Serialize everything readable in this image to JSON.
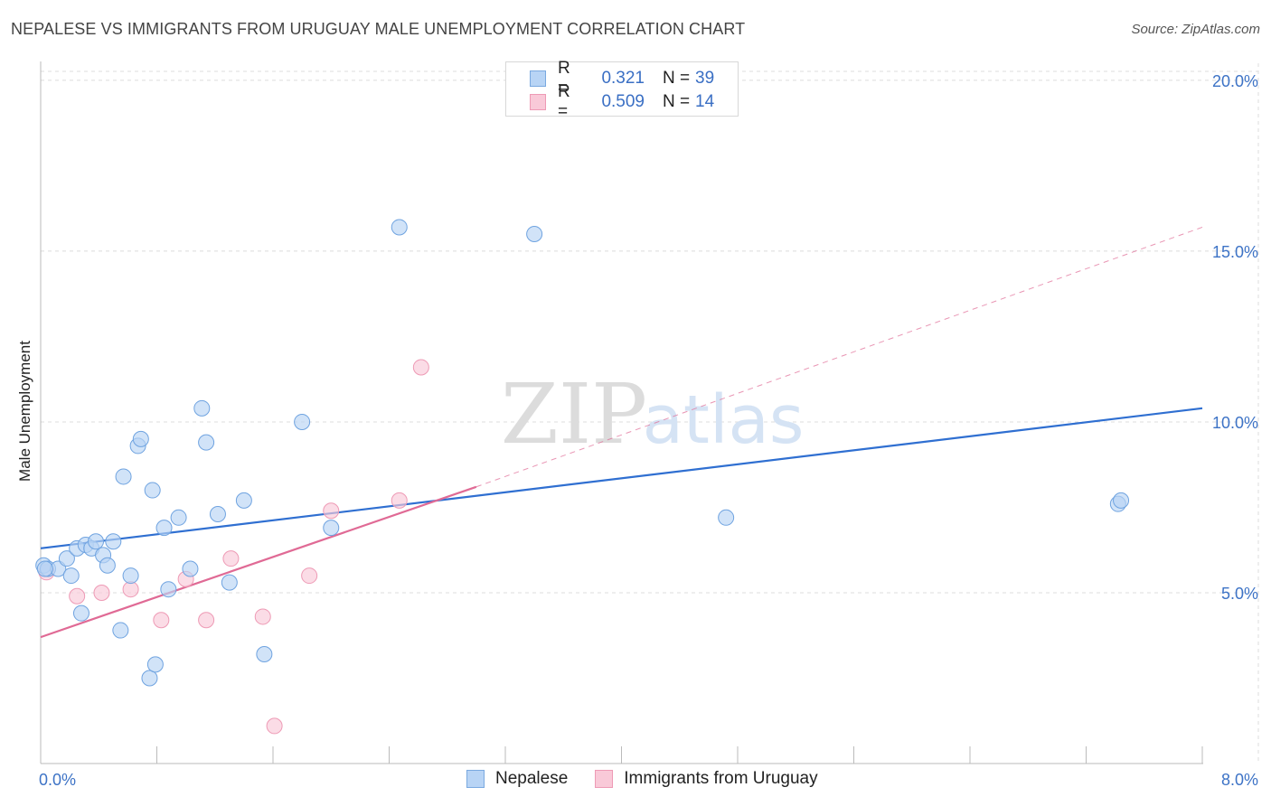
{
  "title": "NEPALESE VS IMMIGRANTS FROM URUGUAY MALE UNEMPLOYMENT CORRELATION CHART",
  "source": "Source: ZipAtlas.com",
  "watermark": {
    "zip": "ZIP",
    "atlas": "atlas"
  },
  "legend": {
    "r_label": "R =",
    "n_label": "N =",
    "rows": [
      {
        "series": "Nepalese",
        "r": "0.321",
        "n": "39",
        "fill": "#b8d4f5",
        "stroke": "#7aa9e0"
      },
      {
        "series": "Immigrants from Uruguay",
        "r": "0.509",
        "n": "14",
        "fill": "#f9c9d8",
        "stroke": "#ee9ab5"
      }
    ]
  },
  "chart_data": {
    "type": "scatter",
    "title": "NEPALESE VS IMMIGRANTS FROM URUGUAY MALE UNEMPLOYMENT CORRELATION CHART",
    "xlabel": "",
    "ylabel": "Male Unemployment",
    "xlim": [
      0,
      8
    ],
    "ylim": [
      0,
      20.5
    ],
    "x_tick_labels": [
      "0.0%",
      "8.0%"
    ],
    "y_ticks": [
      5,
      10,
      15,
      20
    ],
    "y_tick_labels": [
      "5.0%",
      "10.0%",
      "15.0%",
      "20.0%"
    ],
    "grid": true,
    "series": [
      {
        "name": "Nepalese",
        "color": "#6fa3e0",
        "fill": "#b8d4f5",
        "trend_color": "#2f6fd1",
        "trend": {
          "x0": 0,
          "y0": 6.3,
          "x1": 8,
          "y1": 10.4
        },
        "points": [
          [
            0.02,
            5.8
          ],
          [
            0.05,
            5.7
          ],
          [
            0.12,
            5.7
          ],
          [
            0.18,
            6.0
          ],
          [
            0.21,
            5.5
          ],
          [
            0.25,
            6.3
          ],
          [
            0.28,
            4.4
          ],
          [
            0.31,
            6.4
          ],
          [
            0.35,
            6.3
          ],
          [
            0.38,
            6.5
          ],
          [
            0.43,
            6.1
          ],
          [
            0.46,
            5.8
          ],
          [
            0.5,
            6.5
          ],
          [
            0.55,
            3.9
          ],
          [
            0.57,
            8.4
          ],
          [
            0.62,
            5.5
          ],
          [
            0.67,
            9.3
          ],
          [
            0.69,
            9.5
          ],
          [
            0.75,
            2.5
          ],
          [
            0.77,
            8.0
          ],
          [
            0.79,
            2.9
          ],
          [
            0.85,
            6.9
          ],
          [
            0.88,
            5.1
          ],
          [
            0.95,
            7.2
          ],
          [
            1.03,
            5.7
          ],
          [
            1.11,
            10.4
          ],
          [
            1.14,
            9.4
          ],
          [
            1.22,
            7.3
          ],
          [
            1.3,
            5.3
          ],
          [
            1.4,
            7.7
          ],
          [
            1.54,
            3.2
          ],
          [
            1.8,
            10.0
          ],
          [
            2.0,
            6.9
          ],
          [
            2.47,
            15.7
          ],
          [
            3.4,
            15.5
          ],
          [
            4.72,
            7.2
          ],
          [
            7.42,
            7.6
          ],
          [
            7.44,
            7.7
          ],
          [
            0.03,
            5.7
          ]
        ]
      },
      {
        "name": "Immigrants from Uruguay",
        "color": "#ee9ab5",
        "fill": "#f9c9d8",
        "trend_color": "#e06a95",
        "trend": {
          "x0": 0,
          "y0": 3.7,
          "x1": 3.0,
          "y1": 8.1
        },
        "trend_ext": {
          "x0": 3.0,
          "y0": 8.1,
          "x1": 8,
          "y1": 15.7
        },
        "points": [
          [
            0.04,
            5.6
          ],
          [
            0.25,
            4.9
          ],
          [
            0.42,
            5.0
          ],
          [
            0.62,
            5.1
          ],
          [
            0.83,
            4.2
          ],
          [
            1.0,
            5.4
          ],
          [
            1.14,
            4.2
          ],
          [
            1.31,
            6.0
          ],
          [
            1.53,
            4.3
          ],
          [
            1.61,
            1.1
          ],
          [
            1.85,
            5.5
          ],
          [
            2.0,
            7.4
          ],
          [
            2.47,
            7.7
          ],
          [
            2.62,
            11.6
          ]
        ]
      }
    ]
  }
}
